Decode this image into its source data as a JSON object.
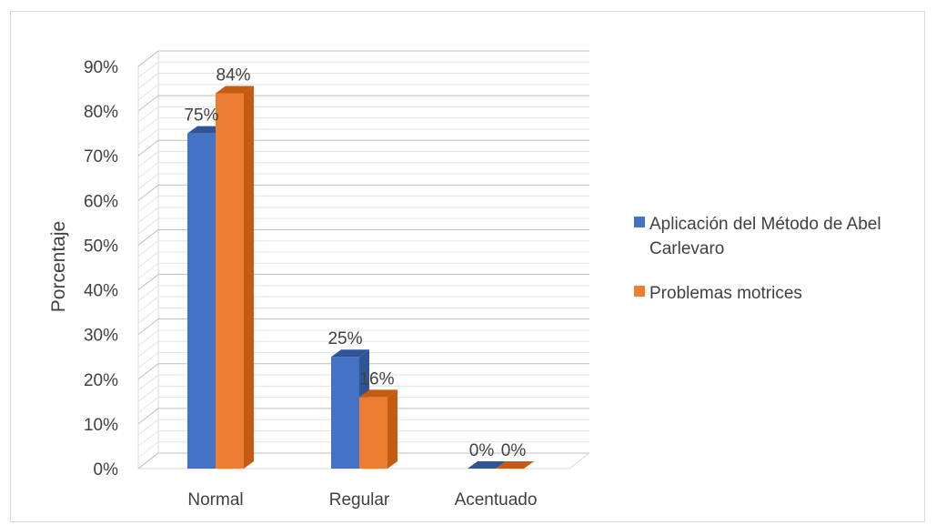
{
  "chart_data": {
    "type": "bar",
    "title": "",
    "xlabel": "",
    "ylabel": "Porcentaje",
    "categories": [
      "Normal",
      "Regular",
      "Acentuado"
    ],
    "series": [
      {
        "name": "Aplicación del Método de Abel Carlevaro",
        "values": [
          75,
          25,
          0
        ],
        "labels": [
          "75%",
          "25%",
          "0%"
        ],
        "color": "#4472c4",
        "side_color": "#2f5597",
        "top_color": "#2f5597"
      },
      {
        "name": "Problemas motrices",
        "values": [
          84,
          16,
          0
        ],
        "labels": [
          "84%",
          "16%",
          "0%"
        ],
        "color": "#ed7d31",
        "side_color": "#c55a11",
        "top_color": "#c55a11"
      }
    ],
    "ylim": [
      0,
      90
    ],
    "yticks": [
      "0%",
      "10%",
      "20%",
      "30%",
      "40%",
      "50%",
      "60%",
      "70%",
      "80%",
      "90%"
    ],
    "ytick_values": [
      0,
      10,
      20,
      30,
      40,
      50,
      60,
      70,
      80,
      90
    ],
    "grid": true,
    "style": "3d-clustered-column",
    "legend": {
      "position": "right",
      "entries": [
        {
          "lines": [
            "Aplicación del Método de Abel",
            "Carlevaro"
          ]
        },
        {
          "lines": [
            "Problemas motrices"
          ]
        }
      ]
    }
  }
}
